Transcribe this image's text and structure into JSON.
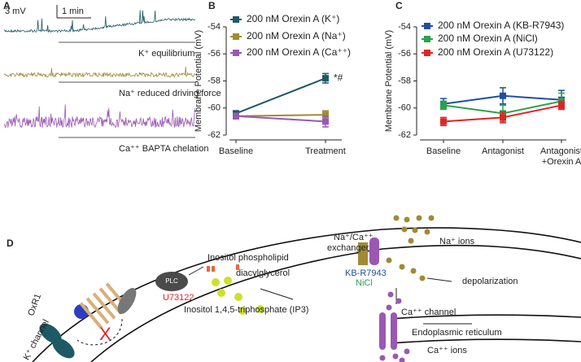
{
  "panel_labels": [
    "A",
    "B",
    "C",
    "D"
  ],
  "panel_a": {
    "scale_mv": "3 mV",
    "scale_time": "1 min",
    "traces": [
      "K⁺ equilibrium",
      "Na⁺ reduced driving force",
      "Ca⁺⁺ BAPTA chelation"
    ]
  },
  "chart_data": [
    {
      "type": "line",
      "ylabel": "Membrane Potential (mV)",
      "categories": [
        "Baseline",
        "Treatment"
      ],
      "series": [
        {
          "name": "200 nM Orexin A (K⁺)",
          "color": "#1e5a66",
          "values": [
            -60.4,
            -57.8
          ],
          "errors": [
            0.2,
            0.35
          ]
        },
        {
          "name": "200 nM Orexin A (Na⁺)",
          "color": "#a08a35",
          "values": [
            -60.6,
            -60.5
          ],
          "errors": [
            0.2,
            0.3
          ]
        },
        {
          "name": "200 nM Orexin A (Ca⁺⁺)",
          "color": "#9a58b4",
          "values": [
            -60.6,
            -61.0
          ],
          "errors": [
            0.2,
            0.4
          ]
        }
      ],
      "annotation": "*#",
      "ylim": [
        -62,
        -54
      ],
      "yticks": [
        -54,
        -56,
        -58,
        -60,
        -62
      ]
    },
    {
      "type": "line",
      "ylabel": "Membrane Potential (mV)",
      "categories": [
        "Baseline",
        "Antagonist",
        "Antagonist\n+Orexin A"
      ],
      "series": [
        {
          "name": "200 nM Orexin A (KB-R7943)",
          "color": "#1f4fa0",
          "values": [
            -59.7,
            -59.1,
            -59.4
          ],
          "errors": [
            0.4,
            0.6,
            0.7
          ]
        },
        {
          "name": "200 nM Orexin A (NiCl)",
          "color": "#2ba24c",
          "values": [
            -59.8,
            -60.4,
            -59.5
          ],
          "errors": [
            0.3,
            0.6,
            0.6
          ]
        },
        {
          "name": "200 nM Orexin A (U73122)",
          "color": "#e02424",
          "values": [
            -61.0,
            -60.7,
            -59.8
          ],
          "errors": [
            0.3,
            0.4,
            0.3
          ]
        }
      ],
      "ylim": [
        -62,
        -54
      ],
      "yticks": [
        -54,
        -56,
        -58,
        -60,
        -62
      ]
    }
  ],
  "diagram": {
    "exchanger": [
      "Na⁺/Ca⁺⁺",
      "exchanger"
    ],
    "na_ions": "Na⁺ ions",
    "phospholipid": "Inositol phospholipid",
    "dag": "diacylglycerol",
    "kb": "KB-R7943",
    "nicl": "NiCl",
    "depolarization": "depolarization",
    "plc": "PLC",
    "u73122": "U73122",
    "oxr1": "OxR1",
    "ip3": "Inositol 1,4,5-triphosphate (IP3)",
    "ca_channel": "Ca⁺⁺ channel",
    "er": "Endoplasmic reticulum",
    "k_channel": "K⁺ channel",
    "ca_ions": "Ca⁺⁺ ions"
  }
}
